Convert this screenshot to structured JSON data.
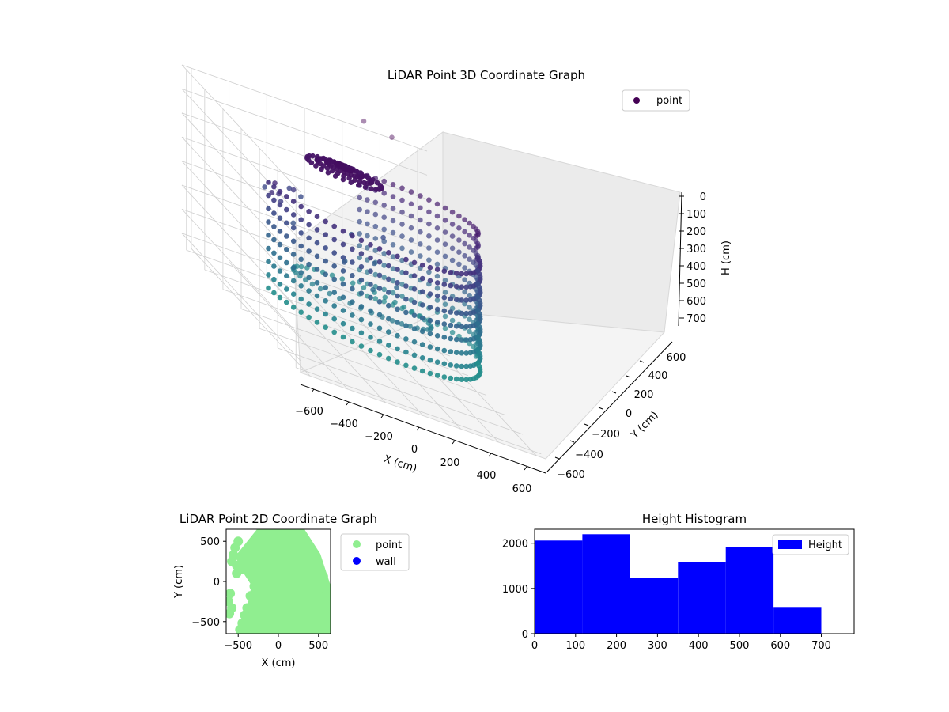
{
  "chart_data": [
    {
      "type": "scatter",
      "title": "LiDAR Point 3D Coordinate Graph",
      "xlabel": "X (cm)",
      "ylabel": "Y (cm)",
      "zlabel": "H (cm)",
      "xlim": [
        -650,
        650
      ],
      "ylim": [
        -650,
        650
      ],
      "zlim": [
        0,
        750
      ],
      "z_inverted": true,
      "x_ticks": [
        -600,
        -400,
        -200,
        0,
        200,
        400,
        600
      ],
      "y_ticks": [
        -600,
        -400,
        -200,
        0,
        200,
        400,
        600
      ],
      "z_ticks": [
        0,
        100,
        200,
        300,
        400,
        500,
        600,
        700
      ],
      "colormap": "viridis",
      "legend": {
        "placement": "upper-right",
        "entries": [
          {
            "name": "point",
            "color": "#440154"
          }
        ]
      },
      "grid": true
    },
    {
      "type": "scatter",
      "title": "LiDAR Point 2D Coordinate Graph",
      "xlabel": "X (cm)",
      "ylabel": "Y (cm)",
      "xlim": [
        -650,
        650
      ],
      "ylim": [
        -650,
        650
      ],
      "x_ticks": [
        -500,
        0,
        500
      ],
      "y_ticks": [
        -500,
        0,
        500
      ],
      "grid": false,
      "legend": {
        "placement": "outside-right",
        "entries": [
          {
            "name": "point",
            "color": "#90ee90"
          },
          {
            "name": "wall",
            "color": "#0000ff"
          }
        ]
      }
    },
    {
      "type": "bar",
      "title": "Height Histogram",
      "xlabel": "",
      "ylabel": "",
      "bin_edges": [
        0,
        116.7,
        233.3,
        350,
        466.7,
        583.3,
        700
      ],
      "values": [
        2060,
        2200,
        1240,
        1580,
        1910,
        590
      ],
      "xlim": [
        0,
        780
      ],
      "ylim": [
        0,
        2310
      ],
      "x_ticks": [
        0,
        100,
        200,
        300,
        400,
        500,
        600,
        700
      ],
      "y_ticks": [
        0,
        1000,
        2000
      ],
      "color": "#0000ff",
      "legend": {
        "placement": "upper-right",
        "entries": [
          {
            "name": "Height",
            "color": "#0000ff"
          }
        ]
      },
      "grid": false
    }
  ]
}
